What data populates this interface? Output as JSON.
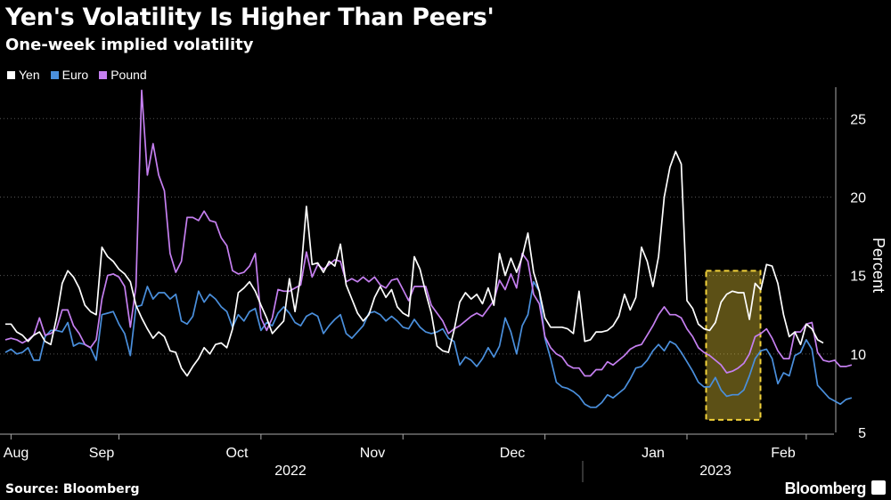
{
  "chart_data": {
    "type": "line",
    "title": "Yen's Volatility Is Higher Than Peers'",
    "subtitle": "One-week implied volatility",
    "ylabel": "Percent",
    "ylim": [
      5,
      27
    ],
    "yticks": [
      5,
      10,
      15,
      20,
      25
    ],
    "x_month_labels": [
      "Aug",
      "Sep",
      "Oct",
      "Nov",
      "Dec",
      "Jan",
      "Feb"
    ],
    "year_labels": [
      "2022",
      "2023"
    ],
    "legend": [
      "Yen",
      "Euro",
      "Pound"
    ],
    "colors": {
      "Yen": "#ffffff",
      "Euro": "#4a8fdc",
      "Pound": "#c57ff0"
    },
    "highlight_window": {
      "from_index": 124,
      "to_index": 132,
      "ymin": 5.8,
      "ymax": 15.3,
      "color": "#f2d23a"
    },
    "series": [
      {
        "name": "Yen",
        "values": [
          11.9,
          11.9,
          11.4,
          11.2,
          10.8,
          11.2,
          11.4,
          10.8,
          10.6,
          12.3,
          14.5,
          15.3,
          14.9,
          14.2,
          13.1,
          12.7,
          12.5,
          16.8,
          16.2,
          15.9,
          15.4,
          15.1,
          14.6,
          13.1,
          12.3,
          11.6,
          11.0,
          11.4,
          11.1,
          10.2,
          10.1,
          9.1,
          8.6,
          9.2,
          9.7,
          10.4,
          10.0,
          10.6,
          10.7,
          10.4,
          11.6,
          13.9,
          14.2,
          14.6,
          14.0,
          13.1,
          12.3,
          11.3,
          11.7,
          12.1,
          14.8,
          12.7,
          15.0,
          19.4,
          15.7,
          15.8,
          15.2,
          15.9,
          15.6,
          17.0,
          14.4,
          13.5,
          12.6,
          12.1,
          12.5,
          13.6,
          14.3,
          13.6,
          14.1,
          13.0,
          12.6,
          12.4,
          16.2,
          15.4,
          13.9,
          12.6,
          10.5,
          10.2,
          10.1,
          11.5,
          13.3,
          13.9,
          13.5,
          13.8,
          13.2,
          14.2,
          13.1,
          16.4,
          15.0,
          16.1,
          15.2,
          16.2,
          17.7,
          15.2,
          14.0,
          12.3,
          11.7,
          11.7,
          11.7,
          11.6,
          11.3,
          14.0,
          10.8,
          10.9,
          11.4,
          11.4,
          11.5,
          11.8,
          12.4,
          13.8,
          12.8,
          13.6,
          16.8,
          15.9,
          14.3,
          16.2,
          20.0,
          21.9,
          22.9,
          22.1,
          13.4,
          12.9,
          11.9,
          11.6,
          11.5,
          12.0,
          13.3,
          13.8,
          14.0,
          13.9,
          13.9,
          12.2,
          14.5,
          14.1,
          15.7,
          15.6,
          14.5,
          12.5,
          11.1,
          11.4,
          10.6,
          11.9,
          11.6,
          10.9,
          10.7
        ]
      },
      {
        "name": "Euro",
        "values": [
          10.1,
          10.3,
          10.0,
          10.1,
          10.4,
          9.6,
          9.6,
          11.1,
          11.5,
          11.5,
          11.4,
          12.0,
          10.5,
          10.7,
          10.6,
          10.4,
          9.6,
          12.5,
          12.6,
          12.7,
          11.9,
          11.3,
          9.9,
          13.0,
          13.1,
          14.3,
          13.5,
          13.9,
          13.9,
          13.5,
          13.8,
          12.1,
          11.9,
          12.4,
          14.0,
          13.3,
          13.8,
          13.5,
          13.0,
          12.7,
          11.7,
          12.5,
          12.1,
          12.7,
          12.9,
          11.5,
          12.0,
          11.8,
          12.6,
          13.0,
          12.6,
          12.0,
          11.8,
          12.4,
          12.6,
          12.4,
          11.3,
          11.8,
          12.2,
          12.5,
          11.3,
          11.0,
          11.4,
          11.8,
          12.6,
          12.7,
          12.5,
          12.1,
          12.4,
          12.1,
          11.7,
          11.6,
          12.2,
          11.7,
          11.4,
          11.3,
          11.4,
          11.6,
          11.0,
          10.8,
          9.3,
          9.8,
          9.6,
          9.2,
          9.7,
          10.4,
          9.8,
          10.5,
          12.3,
          11.4,
          10.0,
          11.8,
          12.5,
          14.6,
          14.0,
          11.0,
          9.7,
          8.2,
          7.9,
          7.8,
          7.6,
          7.3,
          6.8,
          6.6,
          6.6,
          6.9,
          7.4,
          7.2,
          7.5,
          7.8,
          8.4,
          9.1,
          9.2,
          9.6,
          10.2,
          10.6,
          10.2,
          10.8,
          10.6,
          10.1,
          9.5,
          8.9,
          8.2,
          7.9,
          7.9,
          8.5,
          7.7,
          7.3,
          7.4,
          7.4,
          7.7,
          8.6,
          9.7,
          10.2,
          10.3,
          9.7,
          8.1,
          8.8,
          8.6,
          9.9,
          10.1,
          10.9,
          10.3,
          8.0,
          7.6,
          7.2,
          7.0,
          6.8,
          7.1,
          7.2
        ]
      },
      {
        "name": "Pound",
        "values": [
          10.9,
          11.0,
          10.9,
          10.7,
          10.9,
          11.2,
          12.3,
          11.2,
          11.3,
          11.6,
          12.8,
          12.8,
          11.8,
          11.3,
          10.6,
          10.4,
          10.9,
          13.5,
          15.0,
          15.1,
          14.9,
          14.3,
          11.7,
          14.3,
          26.8,
          21.4,
          23.4,
          21.4,
          20.4,
          16.4,
          15.2,
          15.9,
          18.7,
          18.7,
          18.5,
          19.1,
          18.5,
          18.4,
          17.4,
          16.9,
          15.3,
          15.1,
          15.2,
          15.6,
          16.4,
          12.3,
          11.5,
          12.3,
          14.1,
          14.0,
          14.0,
          14.2,
          14.4,
          16.5,
          14.9,
          15.7,
          15.4,
          15.7,
          16.0,
          15.9,
          14.6,
          14.8,
          14.6,
          14.9,
          14.6,
          14.9,
          14.4,
          14.2,
          14.7,
          14.8,
          14.1,
          13.4,
          14.3,
          14.3,
          14.3,
          13.1,
          12.6,
          12.1,
          11.3,
          11.6,
          11.8,
          12.1,
          12.4,
          12.6,
          12.4,
          12.9,
          13.4,
          14.7,
          14.1,
          15.1,
          14.2,
          16.4,
          15.9,
          13.8,
          13.2,
          11.1,
          10.4,
          10.0,
          9.8,
          9.3,
          9.1,
          9.1,
          8.6,
          8.6,
          9.0,
          9.0,
          9.5,
          9.3,
          9.6,
          9.9,
          10.3,
          10.5,
          10.6,
          11.2,
          11.8,
          12.5,
          13.0,
          12.5,
          12.5,
          12.3,
          11.6,
          11.1,
          10.4,
          10.1,
          9.9,
          9.6,
          9.3,
          8.8,
          8.9,
          9.1,
          9.4,
          10.0,
          11.1,
          11.3,
          11.6,
          11.0,
          10.2,
          9.7,
          9.7,
          11.4,
          11.4,
          11.9,
          12.0,
          10.1,
          9.6,
          9.5,
          9.6,
          9.2,
          9.2,
          9.3
        ]
      }
    ]
  },
  "footer": {
    "source": "Source: Bloomberg",
    "brand": "Bloomberg"
  }
}
